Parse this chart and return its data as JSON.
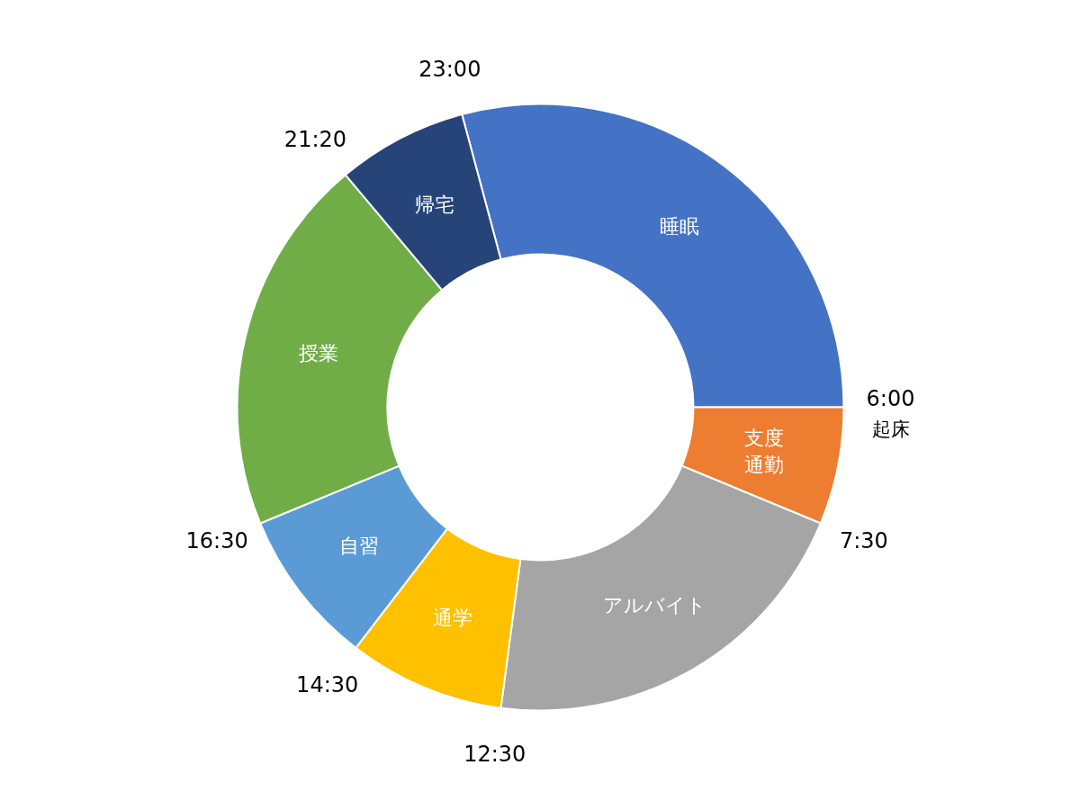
{
  "chart_data": {
    "type": "donut",
    "categories": [
      "睡眠",
      "支度通勤",
      "アルバイト",
      "通学",
      "自習",
      "授業",
      "帰宅"
    ],
    "values": [
      29.1667,
      6.25,
      20.8333,
      8.3333,
      8.3333,
      20.1389,
      6.9444
    ],
    "colors": [
      "#4472c4",
      "#ed7d31",
      "#a5a5a5",
      "#ffc000",
      "#5b9bd5",
      "#70ad47",
      "#264478"
    ],
    "annotations": [
      "6:00\n起床",
      "7:30",
      "12:30",
      "14:30",
      "16:30",
      "21:20",
      "23:00"
    ]
  }
}
